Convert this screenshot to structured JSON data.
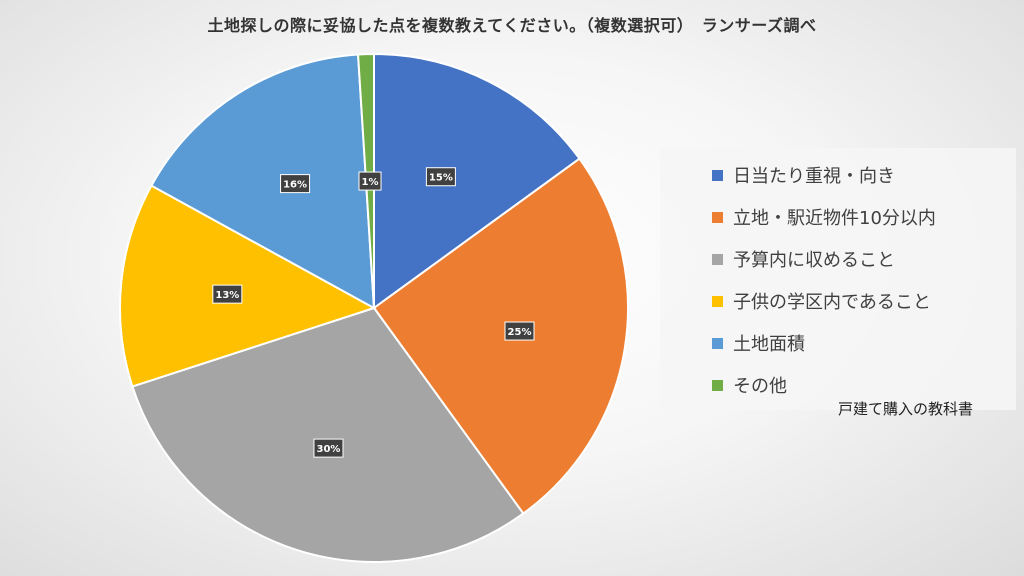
{
  "chart_data": {
    "type": "pie",
    "title": "土地探しの際に妥協した点を複数教えてください。（複数選択可）　ランサーズ調べ",
    "slices": [
      {
        "label": "日当たり重視・向き",
        "value": 15,
        "display": "15%",
        "color": "#4472C4"
      },
      {
        "label": "立地・駅近物件10分以内",
        "value": 25,
        "display": "25%",
        "color": "#ED7D31"
      },
      {
        "label": "予算内に収めること",
        "value": 30,
        "display": "30%",
        "color": "#A5A5A5"
      },
      {
        "label": "子供の学区内であること",
        "value": 13,
        "display": "13%",
        "color": "#FFC000"
      },
      {
        "label": "土地面積",
        "value": 16,
        "display": "16%",
        "color": "#5B9BD5"
      },
      {
        "label": "その他",
        "value": 1,
        "display": "1%",
        "color": "#70AD47"
      }
    ],
    "legend_position": "right"
  },
  "source_note": "戸建て購入の教科書"
}
